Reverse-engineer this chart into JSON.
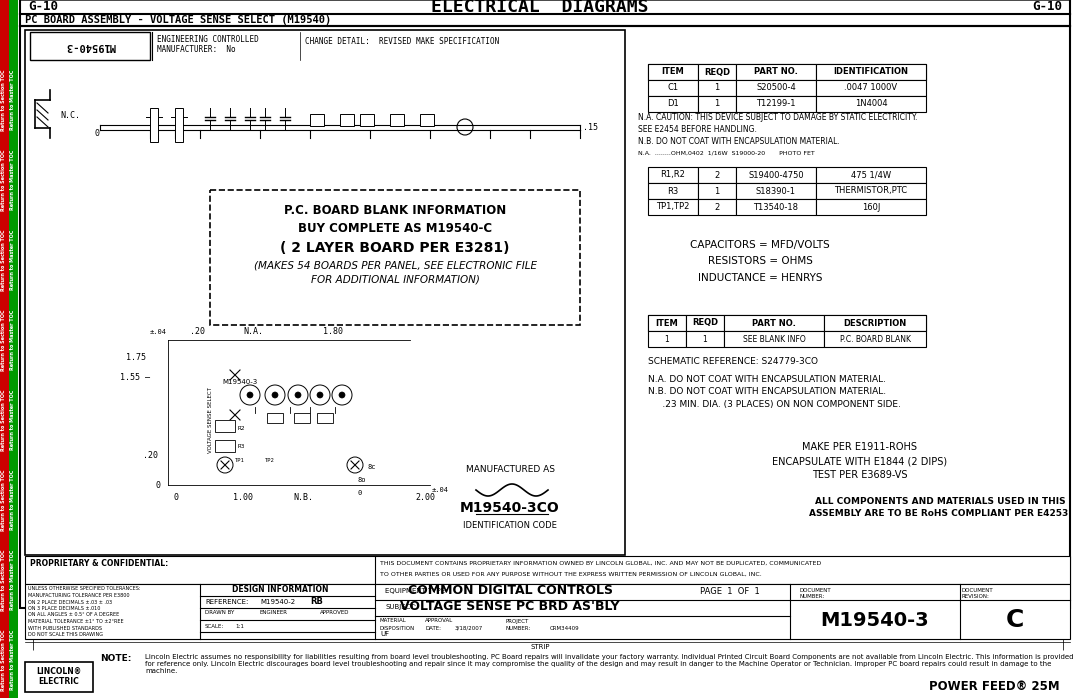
{
  "title": "ELECTRICAL  DIAGRAMS",
  "page_ref": "G-10",
  "subtitle": "PC BOARD ASSEMBLY - VOLTAGE SENSE SELECT (M19540)",
  "bg_color": "#ffffff",
  "sidebar_red": "#cc0000",
  "sidebar_green": "#009900",
  "sidebar_text1": "Return to Section TOC",
  "sidebar_text2": "Return to Master TOC",
  "table1_headers": [
    "ITEM",
    "REQD",
    "PART NO.",
    "IDENTIFICATION"
  ],
  "table1_rows": [
    [
      "C1",
      "1",
      "S20500-4",
      ".0047 1000V"
    ],
    [
      "D1",
      "1",
      "T12199-1",
      "1N4004"
    ]
  ],
  "table2_rows": [
    [
      "R1,R2",
      "2",
      "S19400-4750",
      "475 1/4W"
    ],
    [
      "R3",
      "1",
      "S18390-1",
      "THERMISTOR,PTC"
    ],
    [
      "TP1,TP2",
      "2",
      "T13540-18",
      "160J"
    ]
  ],
  "table3_headers": [
    "ITEM",
    "REQD",
    "PART NO.",
    "DESCRIPTION"
  ],
  "table3_rows": [
    [
      "1",
      "1",
      "SEE BLANK INFO",
      "P.C. BOARD BLANK"
    ]
  ],
  "pc_board_info": [
    "P.C. BOARD BLANK INFORMATION",
    "BUY COMPLETE AS M19540-C",
    "( 2 LAYER BOARD PER E3281)",
    "(MAKES 54 BOARDS PER PANEL, SEE ELECTRONIC FILE",
    "FOR ADDITIONAL INFORMATION)"
  ],
  "units_text": "CAPACITORS = MFD/VOLTS\nRESISTORS = OHMS\nINDUCTANCE = HENRYS",
  "schematic_ref": "SCHEMATIC REFERENCE: S24779-3CO",
  "notes_nc": [
    "N.A. DO NOT COAT WITH ENCAPSULATION MATERIAL.",
    "N.B. DO NOT COAT WITH ENCAPSULATION MATERIAL.",
    "     .23 MIN. DIA. (3 PLACES) ON NON COMPONENT SIDE."
  ],
  "make_notes": [
    "MAKE PER E1911-ROHS",
    "ENCAPSULATE WITH E1844 (2 DIPS)",
    "TEST PER E3689-VS"
  ],
  "rohs_text1": "ALL COMPONENTS AND MATERIALS USED IN THIS",
  "rohs_text2": "ASSEMBLY ARE TO BE RoHS COMPLIANT PER E4253.",
  "id_code": "M19540-3CO",
  "id_label": "IDENTIFICATION CODE",
  "mfg_label": "MANUFACTURED AS",
  "drawing_no": "M19540-3",
  "doc_revision": "C",
  "subject": "VOLTAGE SENSE PC BRD AS'BLY",
  "equip_type": "COMMON DIGITAL CONTROLS",
  "scale": "1:1",
  "material": "UF",
  "approval_date": "3/18/2007",
  "project_number": "CRM34409",
  "page_of": "PAGE  1  OF  1",
  "drawing_ref": "M19540-2",
  "drawn_by": "RB",
  "note_text": "Lincoln Electric assumes no responsibility for liabilities resulting from board level troubleshooting. PC Board repairs will invalidate your factory warranty. Individual Printed Circuit Board Components are not available from Lincoln Electric. This information is provided for reference only. Lincoln Electric discourages board level troubleshooting and repair since it may compromise the quality of the design and may result in danger to the Machine Operator or Technician. Improper PC board repairs could result in damage to the machine.",
  "product_name": "POWER FEED® 25M",
  "prop_bold": "PROPRIETARY & CONFIDENTIAL:",
  "prop_detail": "THIS DOCUMENT CONTAINS PROPRIETARY INFORMATION OWNED BY LINCOLN GLOBAL, INC. AND MAY NOT BE DUPLICATED, COMMUNICATED\nTO OTHER PARTIES OR USED FOR ANY PURPOSE WITHOUT THE EXPRESS WRITTEN PERMISSION OF LINCOLN GLOBAL, INC.",
  "na_notes": [
    "N.A. CAUTION: THIS DEVICE SUBJECT TO DAMAGE BY STATIC ELECTRICITY.",
    "SEE E2454 BEFORE HANDLING.",
    "N.B. DO NOT COAT WITH ENCAPSULATION MATERIAL."
  ],
  "partial_row": "N.A.  ........OHM,0402  1/16W  S19000-20       PHOTO FET"
}
